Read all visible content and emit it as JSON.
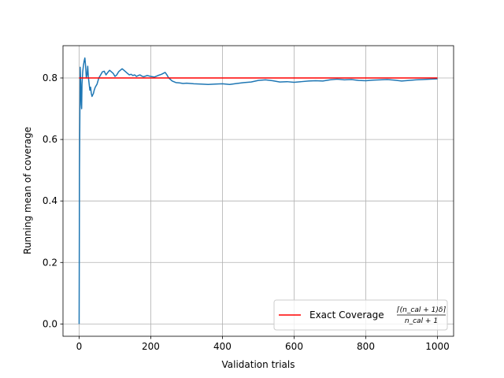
{
  "chart_data": {
    "type": "line",
    "xlabel": "Validation trials",
    "ylabel": "Running mean of coverage",
    "xlim": [
      -45,
      1045
    ],
    "ylim": [
      -0.04,
      0.905
    ],
    "xticks": [
      0,
      200,
      400,
      600,
      800,
      1000
    ],
    "yticks": [
      0.0,
      0.2,
      0.4,
      0.6,
      0.8
    ],
    "xtick_labels": [
      "0",
      "200",
      "400",
      "600",
      "800",
      "1000"
    ],
    "ytick_labels": [
      "0.0",
      "0.2",
      "0.4",
      "0.6",
      "0.8"
    ],
    "grid": true,
    "legend_position": "lower-right",
    "series": [
      {
        "color": "#1f77b4",
        "x": [
          0,
          1,
          2,
          3,
          4,
          5,
          6,
          7,
          8,
          9,
          10,
          12,
          14,
          16,
          18,
          20,
          22,
          24,
          26,
          28,
          30,
          32,
          34,
          36,
          38,
          40,
          42,
          45,
          50,
          55,
          60,
          65,
          70,
          75,
          80,
          85,
          90,
          95,
          100,
          105,
          110,
          115,
          120,
          125,
          130,
          135,
          140,
          145,
          150,
          155,
          160,
          165,
          170,
          175,
          180,
          190,
          200,
          210,
          220,
          230,
          240,
          245,
          250,
          260,
          270,
          280,
          290,
          300,
          320,
          340,
          360,
          380,
          400,
          420,
          440,
          460,
          480,
          500,
          520,
          540,
          560,
          580,
          600,
          620,
          640,
          660,
          680,
          700,
          720,
          740,
          760,
          780,
          800,
          820,
          840,
          860,
          880,
          900,
          920,
          940,
          960,
          980,
          1000
        ],
        "y": [
          0.0,
          0.5,
          0.667,
          0.835,
          0.8,
          0.75,
          0.714,
          0.7,
          0.78,
          0.8,
          0.82,
          0.84,
          0.855,
          0.865,
          0.84,
          0.8,
          0.81,
          0.838,
          0.8,
          0.78,
          0.76,
          0.77,
          0.75,
          0.74,
          0.745,
          0.75,
          0.76,
          0.77,
          0.78,
          0.8,
          0.81,
          0.82,
          0.822,
          0.81,
          0.818,
          0.825,
          0.82,
          0.815,
          0.805,
          0.81,
          0.82,
          0.825,
          0.83,
          0.825,
          0.82,
          0.815,
          0.81,
          0.812,
          0.808,
          0.81,
          0.805,
          0.808,
          0.81,
          0.806,
          0.804,
          0.808,
          0.805,
          0.803,
          0.808,
          0.812,
          0.818,
          0.81,
          0.8,
          0.79,
          0.785,
          0.784,
          0.782,
          0.783,
          0.781,
          0.78,
          0.779,
          0.78,
          0.781,
          0.779,
          0.782,
          0.785,
          0.787,
          0.792,
          0.794,
          0.791,
          0.787,
          0.788,
          0.786,
          0.788,
          0.79,
          0.791,
          0.79,
          0.794,
          0.796,
          0.794,
          0.795,
          0.792,
          0.791,
          0.793,
          0.794,
          0.795,
          0.793,
          0.79,
          0.792,
          0.794,
          0.795,
          0.796,
          0.797
        ]
      },
      {
        "name": "Exact Coverage",
        "color": "#ff0000",
        "x": [
          0,
          1000
        ],
        "y": [
          0.8,
          0.8
        ]
      }
    ],
    "legend": {
      "label": "Exact Coverage",
      "formula_numerator": "⌈(n_cal + 1)δ⌉",
      "formula_denominator": "n_cal + 1"
    }
  }
}
